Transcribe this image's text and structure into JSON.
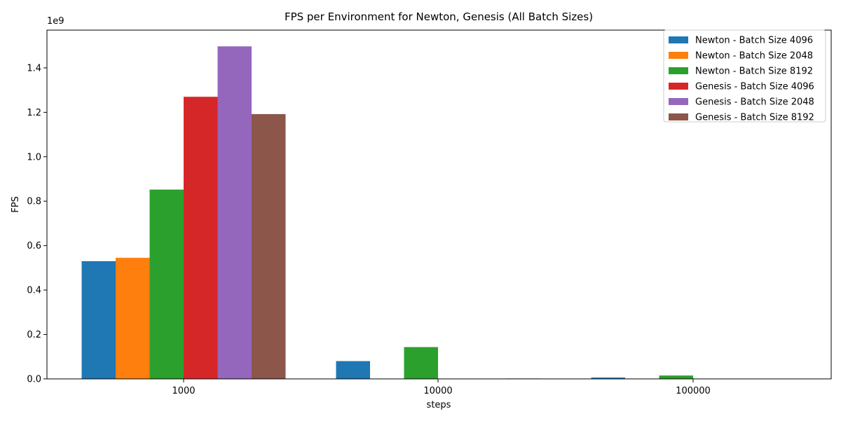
{
  "chart_data": {
    "type": "bar",
    "title": "FPS per Environment for Newton, Genesis (All Batch Sizes)",
    "xlabel": "steps",
    "ylabel": "FPS",
    "y_scale_label": "1e9",
    "categories": [
      "1000",
      "10000",
      "100000"
    ],
    "ylim": [
      0,
      1.57
    ],
    "yticks": [
      "0.0",
      "0.2",
      "0.4",
      "0.6",
      "0.8",
      "1.0",
      "1.2",
      "1.4"
    ],
    "ytick_values": [
      0,
      0.2,
      0.4,
      0.6,
      0.8,
      1.0,
      1.2,
      1.4
    ],
    "grid": false,
    "legend_position": "top-right",
    "series": [
      {
        "name": "Newton - Batch Size 4096",
        "color": "#1f77b4",
        "values": [
          0.53,
          0.08,
          0.006
        ]
      },
      {
        "name": "Newton - Batch Size 2048",
        "color": "#ff7f0e",
        "values": [
          0.545,
          0,
          0
        ]
      },
      {
        "name": "Newton - Batch Size 8192",
        "color": "#2ca02c",
        "values": [
          0.852,
          0.143,
          0.015
        ]
      },
      {
        "name": "Genesis - Batch Size 4096",
        "color": "#d62728",
        "values": [
          1.27,
          0,
          0
        ]
      },
      {
        "name": "Genesis - Batch Size 2048",
        "color": "#9467bd",
        "values": [
          1.497,
          0,
          0
        ]
      },
      {
        "name": "Genesis - Batch Size 8192",
        "color": "#8c564b",
        "values": [
          1.192,
          0.002,
          0
        ]
      }
    ]
  }
}
